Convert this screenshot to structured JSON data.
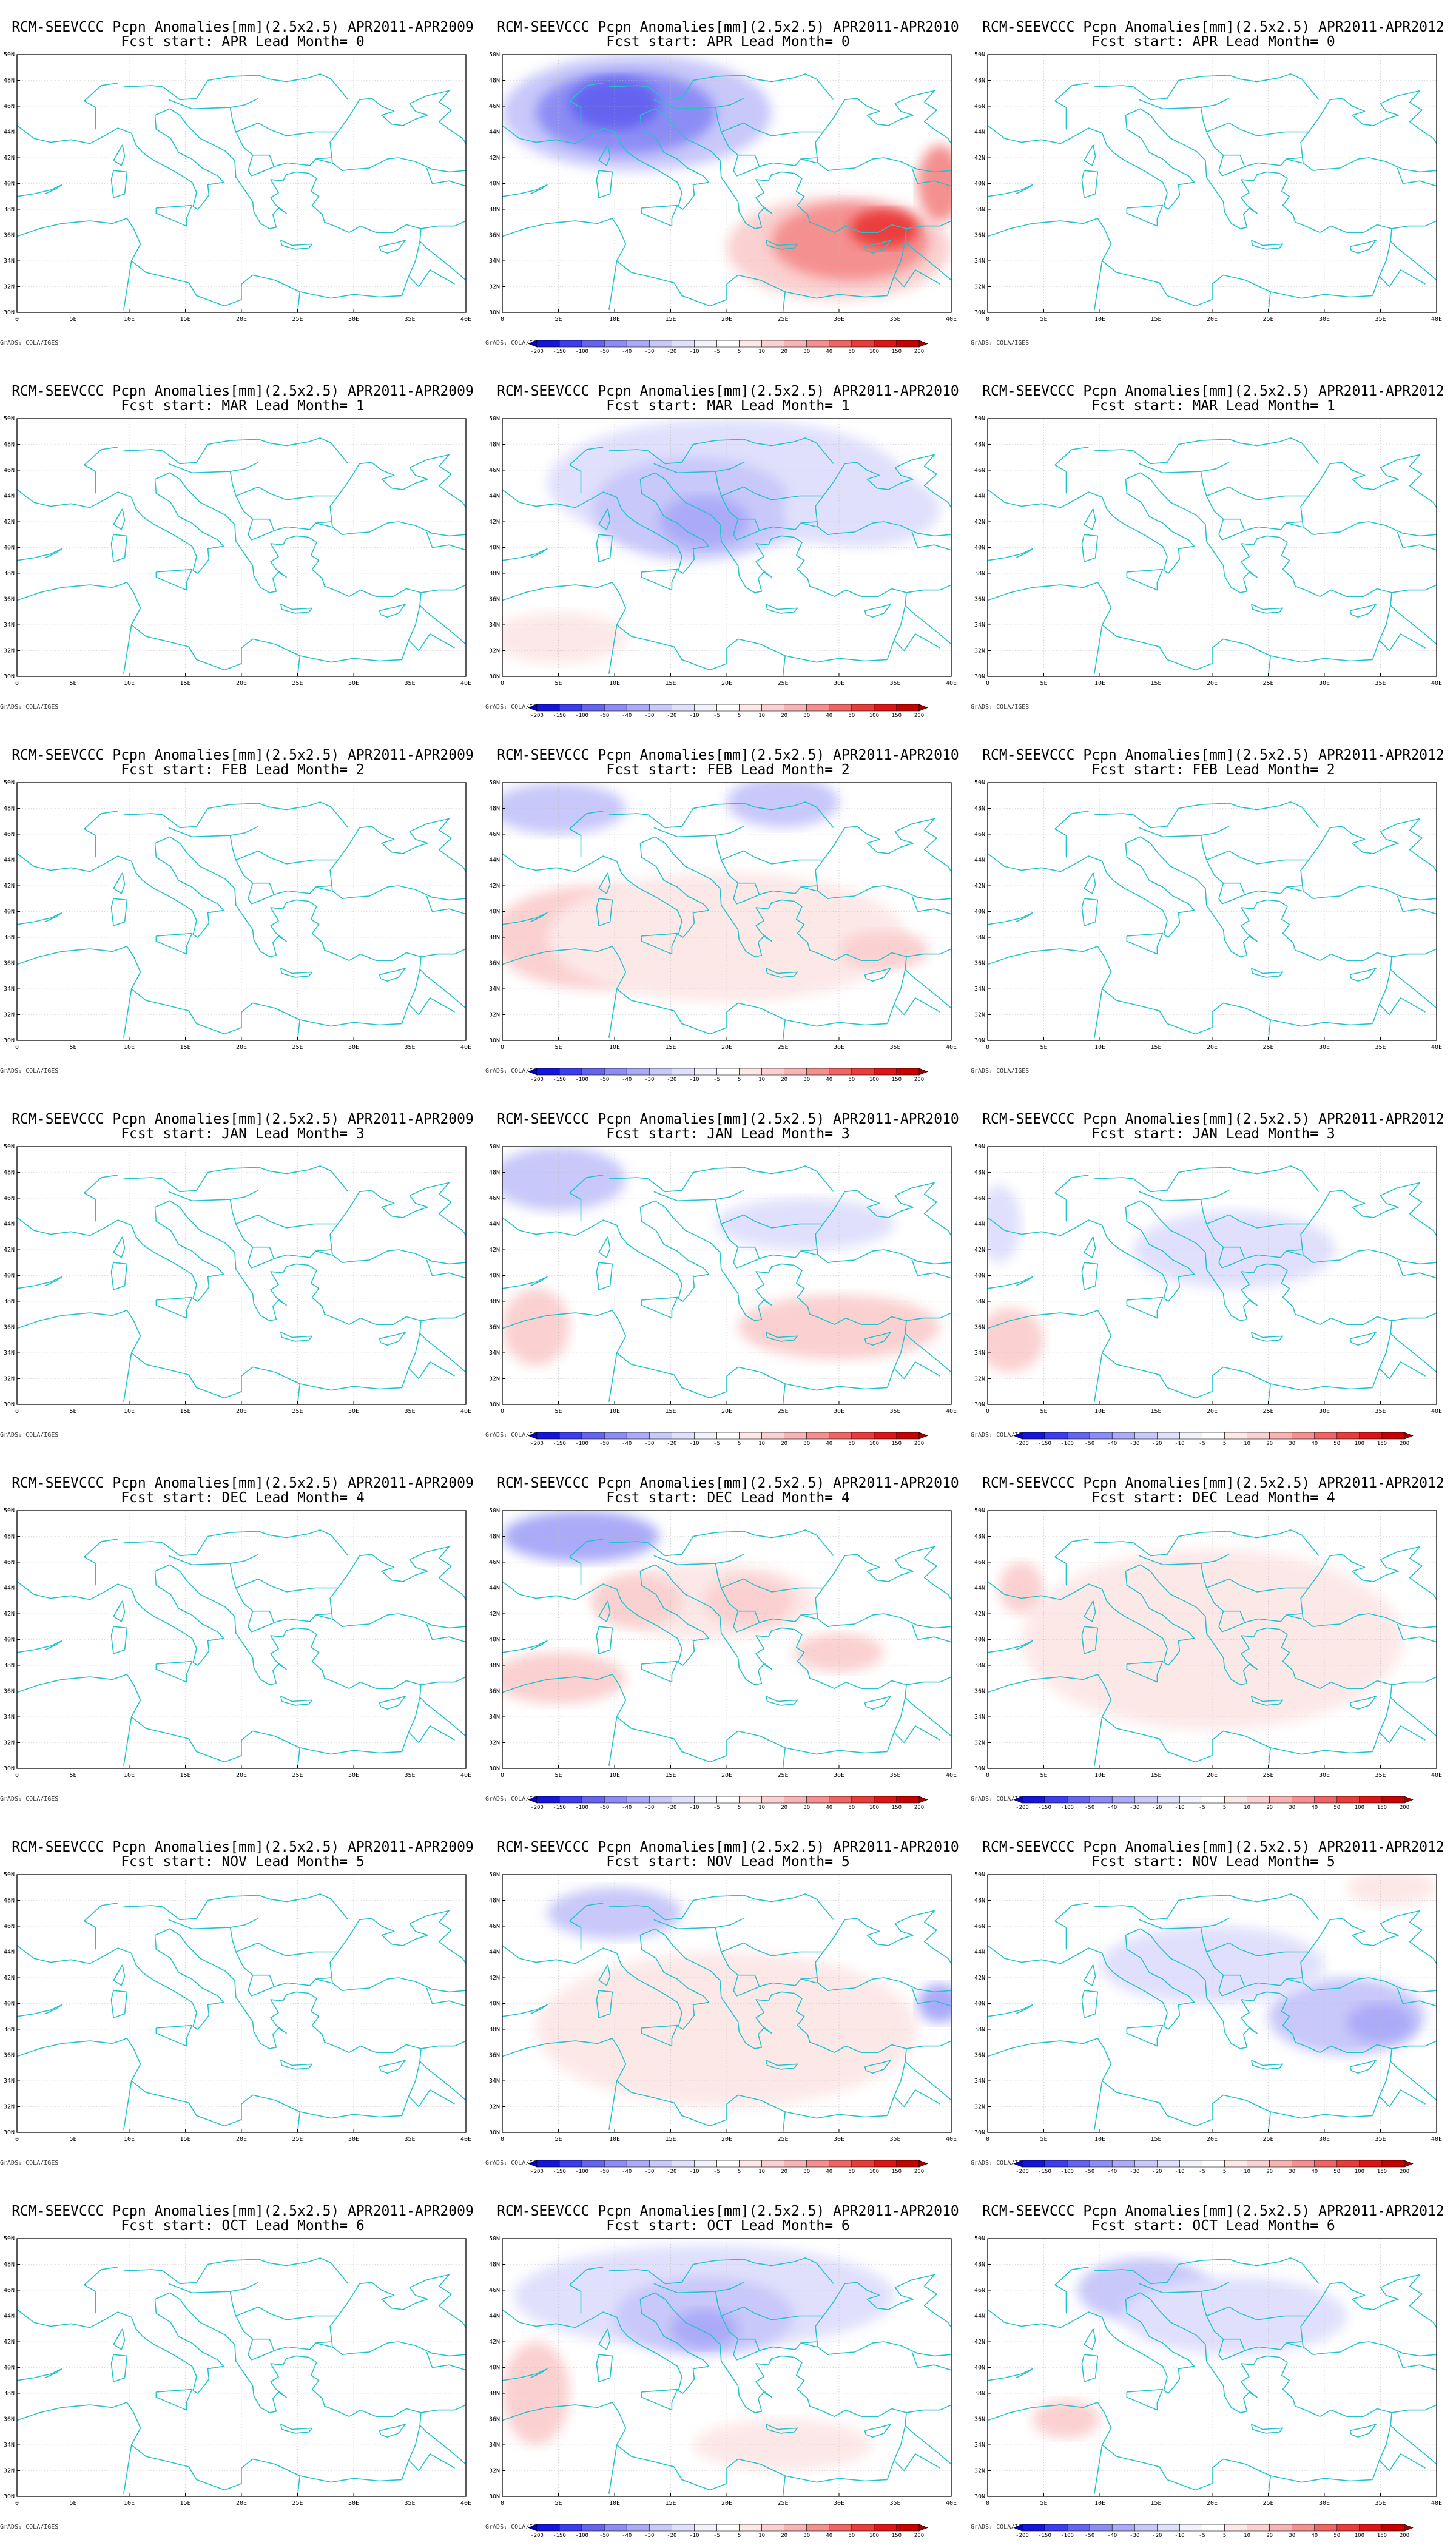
{
  "credit": "GrADS: COLA/IGES",
  "map_extent": {
    "lon": [
      0,
      40
    ],
    "lat": [
      30,
      50
    ]
  },
  "lon_ticks": [
    "0",
    "5E",
    "10E",
    "15E",
    "20E",
    "25E",
    "30E",
    "35E",
    "40E"
  ],
  "lat_ticks": [
    "30N",
    "32N",
    "34N",
    "36N",
    "38N",
    "40N",
    "42N",
    "44N",
    "46N",
    "48N",
    "50N"
  ],
  "colorbar": {
    "labels": [
      "-200",
      "-150",
      "-100",
      "-50",
      "-40",
      "-30",
      "-20",
      "-10",
      "-5",
      "5",
      "10",
      "20",
      "30",
      "40",
      "50",
      "100",
      "150",
      "200"
    ],
    "colors": [
      "#0000c8",
      "#1414dc",
      "#3c3cf0",
      "#6464f0",
      "#8c8cf5",
      "#aaaaf8",
      "#c8c8fa",
      "#e0e0fc",
      "#f2f2fd",
      "#ffffff",
      "#fde8e8",
      "#fbd0d0",
      "#f8b4b4",
      "#f59090",
      "#f06464",
      "#eb3c3c",
      "#e01414",
      "#c80000",
      "#a00000"
    ]
  },
  "panels": [
    {
      "title": "RCM-SEEVCCC Pcpn Anomalies[mm](2.5x2.5) APR2011-APR2009",
      "subtitle": "Fcst start: APR  Lead Month= 0",
      "colorbar": false,
      "blobs": []
    },
    {
      "title": "RCM-SEEVCCC Pcpn Anomalies[mm](2.5x2.5) APR2011-APR2010",
      "subtitle": "Fcst start: APR  Lead Month= 0",
      "colorbar": true,
      "blobs": [
        {
          "lon": 12,
          "lat": 45.5,
          "rx": 12,
          "ry": 4.5,
          "c": "#c8c8fa"
        },
        {
          "lon": 11,
          "lat": 45.5,
          "rx": 8,
          "ry": 3.2,
          "c": "#8c8cf5"
        },
        {
          "lon": 10,
          "lat": 46.2,
          "rx": 4,
          "ry": 2,
          "c": "#6464f0"
        },
        {
          "lon": 30,
          "lat": 35,
          "rx": 10,
          "ry": 4,
          "c": "#fbd0d0"
        },
        {
          "lon": 31,
          "lat": 35.5,
          "rx": 7,
          "ry": 3,
          "c": "#f59090"
        },
        {
          "lon": 34,
          "lat": 36.5,
          "rx": 3,
          "ry": 1.5,
          "c": "#eb3c3c"
        },
        {
          "lon": 39,
          "lat": 40,
          "rx": 2,
          "ry": 3,
          "c": "#f59090"
        }
      ]
    },
    {
      "title": "RCM-SEEVCCC Pcpn Anomalies[mm](2.5x2.5) APR2011-APR2012",
      "subtitle": "Fcst start: APR  Lead Month= 0",
      "colorbar": false,
      "blobs": []
    },
    {
      "title": "RCM-SEEVCCC Pcpn Anomalies[mm](2.5x2.5) APR2011-APR2009",
      "subtitle": "Fcst start: MAR  Lead Month= 1",
      "colorbar": false,
      "blobs": []
    },
    {
      "title": "RCM-SEEVCCC Pcpn Anomalies[mm](2.5x2.5) APR2011-APR2010",
      "subtitle": "Fcst start: MAR  Lead Month= 1",
      "colorbar": true,
      "blobs": [
        {
          "lon": 20,
          "lat": 45,
          "rx": 16,
          "ry": 5,
          "c": "#e0e0fc"
        },
        {
          "lon": 17,
          "lat": 43,
          "rx": 9,
          "ry": 4,
          "c": "#c8c8fa"
        },
        {
          "lon": 18,
          "lat": 42,
          "rx": 4,
          "ry": 2,
          "c": "#aaaaf8"
        },
        {
          "lon": 32,
          "lat": 43,
          "rx": 7,
          "ry": 3,
          "c": "#e0e0fc"
        },
        {
          "lon": 5,
          "lat": 33,
          "rx": 6,
          "ry": 2,
          "c": "#fde8e8"
        }
      ]
    },
    {
      "title": "RCM-SEEVCCC Pcpn Anomalies[mm](2.5x2.5) APR2011-APR2012",
      "subtitle": "Fcst start: MAR  Lead Month= 1",
      "colorbar": false,
      "blobs": []
    },
    {
      "title": "RCM-SEEVCCC Pcpn Anomalies[mm](2.5x2.5) APR2011-APR2009",
      "subtitle": "Fcst start: FEB  Lead Month= 2",
      "colorbar": false,
      "blobs": []
    },
    {
      "title": "RCM-SEEVCCC Pcpn Anomalies[mm](2.5x2.5) APR2011-APR2010",
      "subtitle": "Fcst start: FEB  Lead Month= 2",
      "colorbar": true,
      "blobs": [
        {
          "lon": 5,
          "lat": 48,
          "rx": 6,
          "ry": 2,
          "c": "#c8c8fa"
        },
        {
          "lon": 25,
          "lat": 48.5,
          "rx": 5,
          "ry": 2,
          "c": "#c8c8fa"
        },
        {
          "lon": 8,
          "lat": 38,
          "rx": 9,
          "ry": 4,
          "c": "#fbd0d0"
        },
        {
          "lon": 20,
          "lat": 38,
          "rx": 16,
          "ry": 5,
          "c": "#fde8e8"
        },
        {
          "lon": 34,
          "lat": 37,
          "rx": 4,
          "ry": 1.5,
          "c": "#fbd0d0"
        }
      ]
    },
    {
      "title": "RCM-SEEVCCC Pcpn Anomalies[mm](2.5x2.5) APR2011-APR2012",
      "subtitle": "Fcst start: FEB  Lead Month= 2",
      "colorbar": false,
      "blobs": []
    },
    {
      "title": "RCM-SEEVCCC Pcpn Anomalies[mm](2.5x2.5) APR2011-APR2009",
      "subtitle": "Fcst start: JAN  Lead Month= 3",
      "colorbar": false,
      "blobs": []
    },
    {
      "title": "RCM-SEEVCCC Pcpn Anomalies[mm](2.5x2.5) APR2011-APR2010",
      "subtitle": "Fcst start: JAN  Lead Month= 3",
      "colorbar": true,
      "blobs": [
        {
          "lon": 5,
          "lat": 47.5,
          "rx": 6,
          "ry": 2.5,
          "c": "#c8c8fa"
        },
        {
          "lon": 3,
          "lat": 36,
          "rx": 3,
          "ry": 3,
          "c": "#fbd0d0"
        },
        {
          "lon": 30,
          "lat": 36,
          "rx": 9,
          "ry": 2.5,
          "c": "#fbd0d0"
        },
        {
          "lon": 27,
          "lat": 44,
          "rx": 8,
          "ry": 2,
          "c": "#e0e0fc"
        }
      ]
    },
    {
      "title": "RCM-SEEVCCC Pcpn Anomalies[mm](2.5x2.5) APR2011-APR2012",
      "subtitle": "Fcst start: JAN  Lead Month= 3",
      "colorbar": true,
      "blobs": [
        {
          "lon": 22,
          "lat": 42,
          "rx": 9,
          "ry": 3,
          "c": "#e0e0fc"
        },
        {
          "lon": 2,
          "lat": 35,
          "rx": 3,
          "ry": 2.5,
          "c": "#fbd0d0"
        },
        {
          "lon": 1,
          "lat": 44,
          "rx": 2,
          "ry": 3,
          "c": "#e0e0fc"
        }
      ]
    },
    {
      "title": "RCM-SEEVCCC Pcpn Anomalies[mm](2.5x2.5) APR2011-APR2009",
      "subtitle": "Fcst start: DEC  Lead Month= 4",
      "colorbar": false,
      "blobs": []
    },
    {
      "title": "RCM-SEEVCCC Pcpn Anomalies[mm](2.5x2.5) APR2011-APR2010",
      "subtitle": "Fcst start: DEC  Lead Month= 4",
      "colorbar": true,
      "blobs": [
        {
          "lon": 7,
          "lat": 48,
          "rx": 7,
          "ry": 2,
          "c": "#aaaaf8"
        },
        {
          "lon": 18,
          "lat": 43,
          "rx": 10,
          "ry": 3,
          "c": "#fde8e8"
        },
        {
          "lon": 12,
          "lat": 43,
          "rx": 4,
          "ry": 2,
          "c": "#fbd0d0"
        },
        {
          "lon": 22,
          "lat": 43,
          "rx": 4,
          "ry": 2,
          "c": "#fbd0d0"
        },
        {
          "lon": 5,
          "lat": 37,
          "rx": 6,
          "ry": 2,
          "c": "#fbd0d0"
        },
        {
          "lon": 30,
          "lat": 39,
          "rx": 4,
          "ry": 1.5,
          "c": "#fbd0d0"
        }
      ]
    },
    {
      "title": "RCM-SEEVCCC Pcpn Anomalies[mm](2.5x2.5) APR2011-APR2012",
      "subtitle": "Fcst start: DEC  Lead Month= 4",
      "colorbar": true,
      "blobs": [
        {
          "lon": 20,
          "lat": 40,
          "rx": 17,
          "ry": 7,
          "c": "#fde8e8"
        },
        {
          "lon": 3,
          "lat": 44,
          "rx": 2,
          "ry": 2,
          "c": "#fbd0d0"
        }
      ]
    },
    {
      "title": "RCM-SEEVCCC Pcpn Anomalies[mm](2.5x2.5) APR2011-APR2009",
      "subtitle": "Fcst start: NOV  Lead Month= 5",
      "colorbar": false,
      "blobs": []
    },
    {
      "title": "RCM-SEEVCCC Pcpn Anomalies[mm](2.5x2.5) APR2011-APR2010",
      "subtitle": "Fcst start: NOV  Lead Month= 5",
      "colorbar": true,
      "blobs": [
        {
          "lon": 10,
          "lat": 47,
          "rx": 6,
          "ry": 2,
          "c": "#c8c8fa"
        },
        {
          "lon": 20,
          "lat": 38,
          "rx": 17,
          "ry": 6,
          "c": "#fde8e8"
        },
        {
          "lon": 39,
          "lat": 40,
          "rx": 2,
          "ry": 1.5,
          "c": "#aaaaf8"
        }
      ]
    },
    {
      "title": "RCM-SEEVCCC Pcpn Anomalies[mm](2.5x2.5) APR2011-APR2012",
      "subtitle": "Fcst start: NOV  Lead Month= 5",
      "colorbar": true,
      "blobs": [
        {
          "lon": 32,
          "lat": 39,
          "rx": 7,
          "ry": 3,
          "c": "#c8c8fa"
        },
        {
          "lon": 35,
          "lat": 38.5,
          "rx": 3,
          "ry": 1.5,
          "c": "#aaaaf8"
        },
        {
          "lon": 20,
          "lat": 43,
          "rx": 10,
          "ry": 3,
          "c": "#e0e0fc"
        },
        {
          "lon": 36,
          "lat": 49,
          "rx": 4,
          "ry": 1.5,
          "c": "#fde8e8"
        }
      ]
    },
    {
      "title": "RCM-SEEVCCC Pcpn Anomalies[mm](2.5x2.5) APR2011-APR2009",
      "subtitle": "Fcst start: OCT  Lead Month= 6",
      "colorbar": false,
      "blobs": []
    },
    {
      "title": "RCM-SEEVCCC Pcpn Anomalies[mm](2.5x2.5) APR2011-APR2010",
      "subtitle": "Fcst start: OCT  Lead Month= 6",
      "colorbar": true,
      "blobs": [
        {
          "lon": 18,
          "lat": 45.5,
          "rx": 17,
          "ry": 4,
          "c": "#e0e0fc"
        },
        {
          "lon": 18,
          "lat": 44,
          "rx": 8,
          "ry": 3,
          "c": "#c8c8fa"
        },
        {
          "lon": 18,
          "lat": 43,
          "rx": 3,
          "ry": 1.5,
          "c": "#aaaaf8"
        },
        {
          "lon": 3,
          "lat": 38,
          "rx": 3,
          "ry": 4,
          "c": "#fbd0d0"
        },
        {
          "lon": 25,
          "lat": 34,
          "rx": 8,
          "ry": 2,
          "c": "#fde8e8"
        }
      ]
    },
    {
      "title": "RCM-SEEVCCC Pcpn Anomalies[mm](2.5x2.5) APR2011-APR2012",
      "subtitle": "Fcst start: OCT  Lead Month= 6",
      "colorbar": true,
      "blobs": [
        {
          "lon": 14,
          "lat": 46,
          "rx": 6,
          "ry": 2.5,
          "c": "#c8c8fa"
        },
        {
          "lon": 22,
          "lat": 44,
          "rx": 10,
          "ry": 3,
          "c": "#e0e0fc"
        },
        {
          "lon": 7,
          "lat": 36,
          "rx": 3,
          "ry": 1.5,
          "c": "#fbd0d0"
        }
      ]
    }
  ]
}
